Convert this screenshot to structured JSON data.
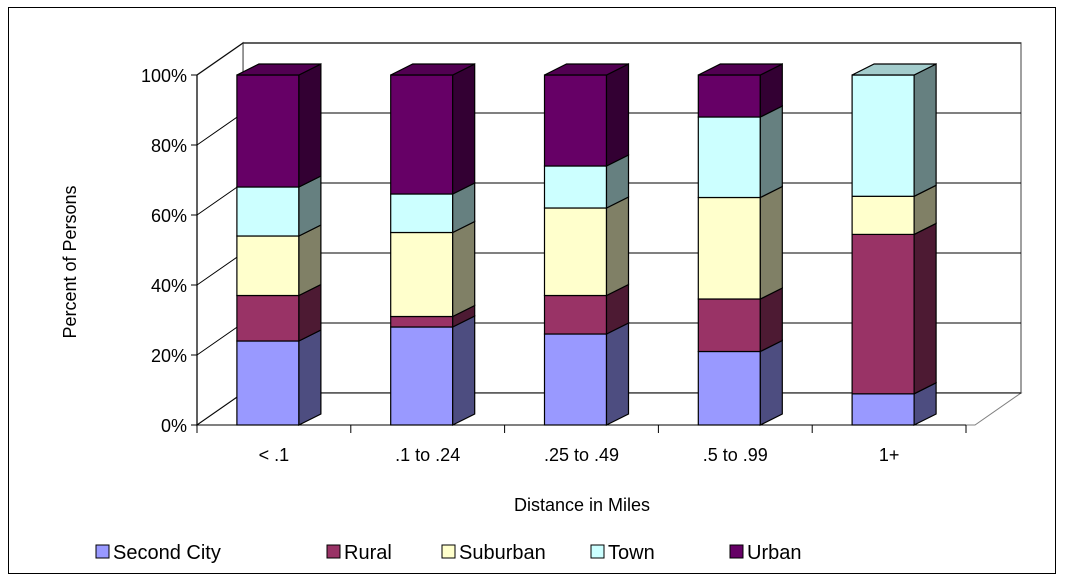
{
  "chart_data": {
    "type": "bar",
    "stacked": "percent",
    "three_d": true,
    "title": "",
    "xlabel": "Distance in Miles",
    "ylabel": "Percent of Persons",
    "categories": [
      "< .1",
      ".1 to .24",
      ".25 to .49",
      ".5 to .99",
      "1+"
    ],
    "y_ticks": [
      "0%",
      "20%",
      "40%",
      "60%",
      "80%",
      "100%"
    ],
    "ylim": [
      0,
      100
    ],
    "grid": true,
    "legend_position": "bottom",
    "series": [
      {
        "name": "Second City",
        "color": "#9999ff",
        "values": [
          24,
          28,
          26,
          21,
          9
        ]
      },
      {
        "name": "Rural",
        "color": "#993366",
        "values": [
          13,
          3,
          11,
          15,
          46
        ]
      },
      {
        "name": "Suburban",
        "color": "#ffffcc",
        "values": [
          17,
          24,
          25,
          29,
          11
        ]
      },
      {
        "name": "Town",
        "color": "#ccffff",
        "values": [
          14,
          11,
          12,
          23,
          35
        ]
      },
      {
        "name": "Urban",
        "color": "#660066",
        "values": [
          32,
          34,
          26,
          12,
          0
        ]
      }
    ]
  }
}
